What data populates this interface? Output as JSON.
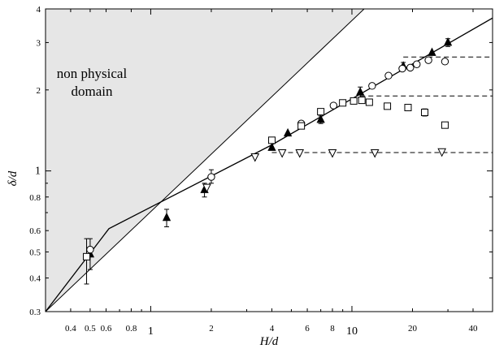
{
  "chart_data": {
    "type": "scatter",
    "xscale": "log",
    "yscale": "log",
    "xlim": [
      0.3,
      50
    ],
    "ylim": [
      0.3,
      4
    ],
    "xlabel": "H/d",
    "ylabel": "δ/d",
    "grid": false,
    "x_ticks": [
      {
        "value": 0.4,
        "label": "0.4"
      },
      {
        "value": 0.5,
        "label": "0.5"
      },
      {
        "value": 0.6,
        "label": "0.6"
      },
      {
        "value": 0.8,
        "label": "0.8"
      },
      {
        "value": 1,
        "label": "1",
        "major": true
      },
      {
        "value": 2,
        "label": "2"
      },
      {
        "value": 4,
        "label": "4"
      },
      {
        "value": 6,
        "label": "6"
      },
      {
        "value": 8,
        "label": "8"
      },
      {
        "value": 10,
        "label": "10",
        "major": true
      },
      {
        "value": 20,
        "label": "20"
      },
      {
        "value": 40,
        "label": "40"
      }
    ],
    "y_ticks": [
      {
        "value": 0.3,
        "label": "0.3"
      },
      {
        "value": 0.4,
        "label": "0.4"
      },
      {
        "value": 0.5,
        "label": "0.5"
      },
      {
        "value": 0.6,
        "label": "0.6"
      },
      {
        "value": 0.8,
        "label": "0.8"
      },
      {
        "value": 1,
        "label": "1",
        "major": true
      },
      {
        "value": 2,
        "label": "2"
      },
      {
        "value": 3,
        "label": "3"
      },
      {
        "value": 4,
        "label": "4"
      }
    ],
    "region": {
      "label_lines": [
        "non physical",
        "domain"
      ],
      "polygon": [
        [
          0.3,
          0.3
        ],
        [
          0.3,
          4
        ],
        [
          11.5,
          4
        ]
      ],
      "fill": "#e6e6e6"
    },
    "solid_line": [
      [
        0.3,
        0.3
      ],
      [
        0.62,
        0.61
      ],
      [
        4,
        1.25
      ],
      [
        50,
        3.7
      ]
    ],
    "dashed_lines": [
      {
        "y": 1.17,
        "x": [
          4,
          50
        ]
      },
      {
        "y": 1.9,
        "x": [
          11,
          50
        ]
      },
      {
        "y": 2.65,
        "x": [
          18,
          50
        ]
      }
    ],
    "series": [
      {
        "marker": "filled-triangle",
        "points": [
          {
            "x": 0.5,
            "y": 0.49,
            "err": [
              0.43,
              0.56
            ]
          },
          {
            "x": 1.2,
            "y": 0.67,
            "err": [
              0.62,
              0.72
            ]
          },
          {
            "x": 1.85,
            "y": 0.85,
            "err": [
              0.8,
              0.9
            ]
          },
          {
            "x": 4,
            "y": 1.22
          },
          {
            "x": 4.8,
            "y": 1.38
          },
          {
            "x": 7,
            "y": 1.55,
            "err": [
              1.5,
              1.6
            ]
          },
          {
            "x": 11,
            "y": 1.96,
            "err": [
              1.87,
              2.05
            ]
          },
          {
            "x": 18,
            "y": 2.45,
            "err": [
              2.38,
              2.53
            ]
          },
          {
            "x": 25,
            "y": 2.75
          },
          {
            "x": 30,
            "y": 3.0,
            "err": [
              2.9,
              3.1
            ]
          }
        ]
      },
      {
        "marker": "open-circle",
        "points": [
          {
            "x": 0.5,
            "y": 0.51
          },
          {
            "x": 2,
            "y": 0.95,
            "err": [
              0.9,
              1.01
            ]
          },
          {
            "x": 5.6,
            "y": 1.5
          },
          {
            "x": 8.1,
            "y": 1.75
          },
          {
            "x": 12.6,
            "y": 2.07
          },
          {
            "x": 15.2,
            "y": 2.26
          },
          {
            "x": 17.8,
            "y": 2.4
          },
          {
            "x": 19.5,
            "y": 2.42
          },
          {
            "x": 21,
            "y": 2.49
          },
          {
            "x": 24,
            "y": 2.58
          },
          {
            "x": 29,
            "y": 2.55
          }
        ]
      },
      {
        "marker": "open-square",
        "points": [
          {
            "x": 0.48,
            "y": 0.48,
            "err": [
              0.38,
              0.56
            ]
          },
          {
            "x": 4,
            "y": 1.3
          },
          {
            "x": 5.6,
            "y": 1.47
          },
          {
            "x": 7,
            "y": 1.66
          },
          {
            "x": 9,
            "y": 1.79
          },
          {
            "x": 10.2,
            "y": 1.82
          },
          {
            "x": 11.2,
            "y": 1.83
          },
          {
            "x": 12.2,
            "y": 1.8
          },
          {
            "x": 15,
            "y": 1.74
          },
          {
            "x": 19,
            "y": 1.72
          },
          {
            "x": 23,
            "y": 1.65,
            "err": [
              1.6,
              1.7
            ]
          },
          {
            "x": 29,
            "y": 1.48
          }
        ]
      },
      {
        "marker": "open-triangle-down",
        "points": [
          {
            "x": 1.9,
            "y": 0.87
          },
          {
            "x": 3.3,
            "y": 1.13
          },
          {
            "x": 4.5,
            "y": 1.17
          },
          {
            "x": 5.5,
            "y": 1.17
          },
          {
            "x": 8,
            "y": 1.17
          },
          {
            "x": 13,
            "y": 1.17
          },
          {
            "x": 28,
            "y": 1.18
          }
        ]
      }
    ]
  }
}
